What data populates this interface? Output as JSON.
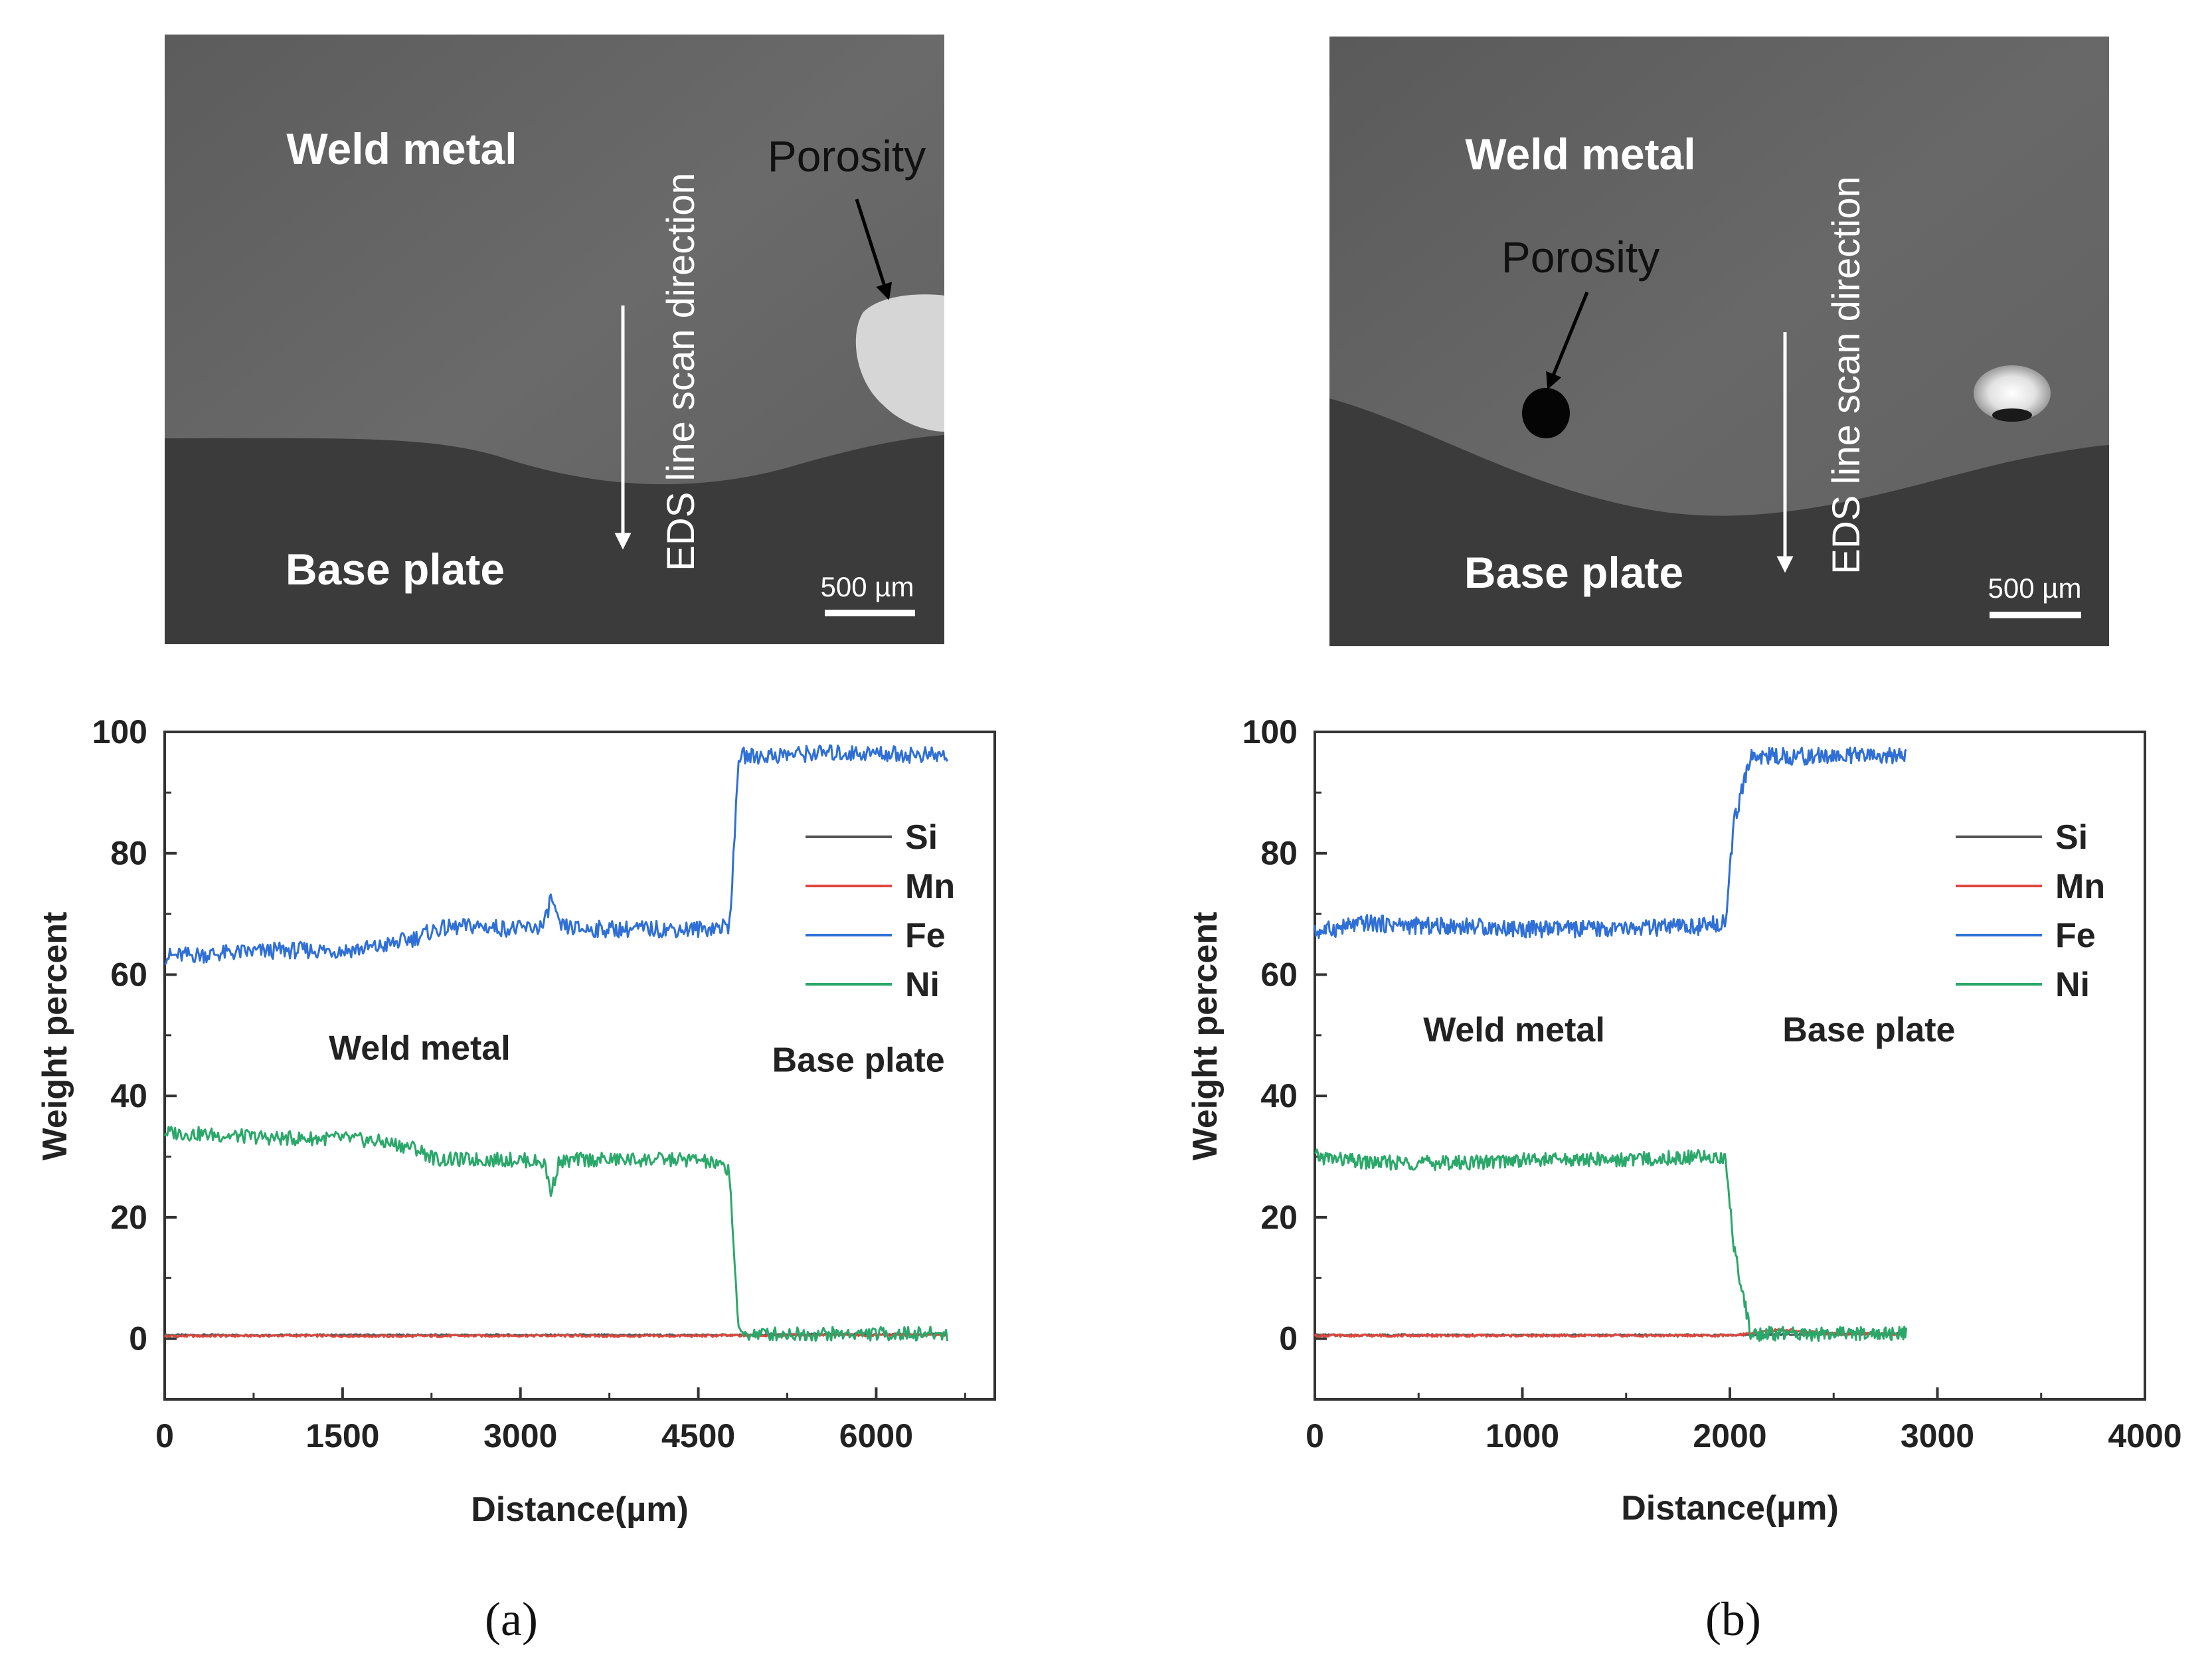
{
  "panels": [
    {
      "id": "a",
      "caption": "(a)",
      "sem": {
        "weld_label": "Weld metal",
        "base_label": "Base plate",
        "porosity_label": "Porosity",
        "scan_label": "EDS line scan direction",
        "scale_label": "500 µm"
      }
    },
    {
      "id": "b",
      "caption": "(b)",
      "sem": {
        "weld_label": "Weld metal",
        "base_label": "Base plate",
        "porosity_label": "Porosity",
        "scan_label": "EDS line scan direction",
        "scale_label": "500 µm"
      }
    }
  ],
  "legend_colors": {
    "Si": "#555555",
    "Mn": "#e0463c",
    "Fe": "#2f6fd6",
    "Ni": "#2aa86a"
  },
  "chart_data": [
    {
      "type": "line",
      "xlabel": "Distance(µm)",
      "ylabel": "Weight percent",
      "xlim": [
        0,
        7000
      ],
      "ylim": [
        -10,
        100
      ],
      "xticks": [
        0,
        1500,
        3000,
        4500,
        6000
      ],
      "xtick_labels": [
        "0",
        "1500",
        "3000",
        "4500",
        "6000"
      ],
      "yticks": [
        0,
        20,
        40,
        60,
        80,
        100
      ],
      "ytick_labels": [
        "0",
        "20",
        "40",
        "60",
        "80",
        "100"
      ],
      "annotations": [
        {
          "text": "Weld metal",
          "x": 2150,
          "y": 46
        },
        {
          "text": "Base plate",
          "x": 5850,
          "y": 44
        }
      ],
      "legend": [
        "Si",
        "Mn",
        "Fe",
        "Ni"
      ],
      "series": [
        {
          "name": "Si",
          "x": [
            0,
            1000,
            2000,
            3000,
            4000,
            4800,
            5500,
            6600
          ],
          "y": [
            0.6,
            0.6,
            0.6,
            0.6,
            0.6,
            0.6,
            0.7,
            0.7
          ]
        },
        {
          "name": "Mn",
          "x": [
            0,
            1000,
            2000,
            3000,
            4000,
            4800,
            5500,
            6600
          ],
          "y": [
            0.4,
            0.5,
            0.4,
            0.5,
            0.4,
            0.5,
            0.6,
            0.6
          ]
        },
        {
          "name": "Fe",
          "x": [
            0,
            500,
            1000,
            1500,
            1800,
            2100,
            2300,
            2600,
            3000,
            3200,
            3260,
            3320,
            3500,
            4000,
            4500,
            4760,
            4800,
            4840,
            5000,
            5500,
            6000,
            6600
          ],
          "y": [
            63,
            63.5,
            64,
            64,
            64.5,
            66,
            67.5,
            68,
            67.5,
            68,
            73,
            68,
            67.5,
            67.5,
            67.5,
            68,
            80,
            96,
            96,
            96.5,
            96.5,
            96
          ]
        },
        {
          "name": "Ni",
          "x": [
            0,
            500,
            1000,
            1500,
            1800,
            2100,
            2300,
            2600,
            3000,
            3200,
            3260,
            3320,
            3500,
            4000,
            4500,
            4760,
            4800,
            4840,
            5000,
            5500,
            6000,
            6600
          ],
          "y": [
            34,
            33.5,
            33,
            33,
            32.5,
            31.5,
            29.5,
            29.5,
            29.5,
            29,
            24,
            29,
            29.5,
            29.5,
            29.5,
            28,
            15,
            0.8,
            0.8,
            0.8,
            0.8,
            0.8
          ]
        }
      ]
    },
    {
      "type": "line",
      "xlabel": "Distance(µm)",
      "ylabel": "Weight percent",
      "xlim": [
        0,
        4000
      ],
      "ylim": [
        -10,
        100
      ],
      "xticks": [
        0,
        1000,
        2000,
        3000,
        4000
      ],
      "xtick_labels": [
        "0",
        "1000",
        "2000",
        "3000",
        "4000"
      ],
      "yticks": [
        0,
        20,
        40,
        60,
        80,
        100
      ],
      "ytick_labels": [
        "0",
        "20",
        "40",
        "60",
        "80",
        "100"
      ],
      "annotations": [
        {
          "text": "Weld metal",
          "x": 960,
          "y": 49
        },
        {
          "text": "Base plate",
          "x": 2670,
          "y": 49
        }
      ],
      "legend": [
        "Si",
        "Mn",
        "Fe",
        "Ni"
      ],
      "series": [
        {
          "name": "Si",
          "x": [
            0,
            1000,
            2000,
            2500,
            2850
          ],
          "y": [
            0.6,
            0.6,
            0.6,
            0.8,
            0.8
          ]
        },
        {
          "name": "Mn",
          "x": [
            0,
            1000,
            2000,
            2250,
            2500,
            2850
          ],
          "y": [
            0.5,
            0.5,
            0.5,
            1.5,
            0.8,
            0.7
          ]
        },
        {
          "name": "Fe",
          "x": [
            0,
            250,
            500,
            750,
            1000,
            1500,
            1900,
            1980,
            2020,
            2100,
            2500,
            2850
          ],
          "y": [
            67,
            68.5,
            68,
            68,
            67.5,
            67.5,
            68,
            69,
            85,
            96,
            96,
            96
          ]
        },
        {
          "name": "Ni",
          "x": [
            0,
            250,
            500,
            750,
            1000,
            1500,
            1900,
            1980,
            2020,
            2100,
            2500,
            2850
          ],
          "y": [
            30,
            29,
            29,
            29,
            29.5,
            29.5,
            30,
            29.5,
            15,
            0.8,
            0.8,
            0.8
          ]
        }
      ]
    }
  ]
}
